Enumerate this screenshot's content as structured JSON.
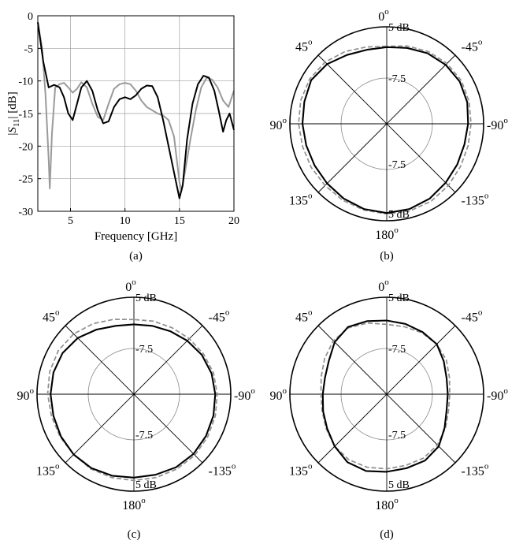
{
  "figure": {
    "colors": {
      "black": "#000000",
      "gray": "#9a9a9a",
      "dashed": "#8f8f8f",
      "circle": "#888888"
    }
  },
  "chart_data": [
    {
      "type": "line",
      "panel_label": "(a)",
      "xlabel": "Frequency [GHz]",
      "ylabel_parts": [
        "|",
        "S",
        "11",
        "| [dB]"
      ],
      "xlim": [
        2,
        20
      ],
      "ylim": [
        -30,
        0
      ],
      "xticks": [
        5,
        10,
        15,
        20
      ],
      "yticks": [
        0,
        -5,
        -10,
        -15,
        -20,
        -25,
        -30
      ],
      "grid": true,
      "series": [
        {
          "color": "#9a9a9a",
          "x": [
            2,
            2.4,
            2.7,
            3.0,
            3.1,
            3.3,
            3.6,
            4.0,
            4.4,
            4.8,
            5.2,
            5.6,
            6.0,
            6.5,
            7.0,
            7.5,
            8.0,
            8.5,
            9.0,
            9.5,
            10.0,
            10.5,
            11.0,
            11.5,
            12.0,
            12.5,
            13.0,
            13.5,
            14.0,
            14.5,
            15.0,
            15.2,
            15.5,
            16.0,
            16.5,
            17.0,
            17.5,
            18.0,
            18.5,
            19.0,
            19.5,
            20.0
          ],
          "y": [
            -1,
            -5,
            -12,
            -22,
            -26.5,
            -18,
            -11,
            -10.5,
            -10.3,
            -11.0,
            -11.8,
            -11.2,
            -10.2,
            -11.0,
            -13.5,
            -15.5,
            -16.0,
            -13.5,
            -11.2,
            -10.5,
            -10.3,
            -10.5,
            -11.5,
            -13.0,
            -14.0,
            -14.5,
            -15.0,
            -15.3,
            -16.0,
            -18.5,
            -25.5,
            -26.8,
            -24.0,
            -19.0,
            -14.5,
            -11.0,
            -9.5,
            -9.8,
            -11.0,
            -13.0,
            -14.0,
            -11.5
          ]
        },
        {
          "color": "#000000",
          "x": [
            2,
            2.5,
            3.0,
            3.5,
            4.0,
            4.4,
            4.8,
            5.2,
            5.6,
            6.0,
            6.5,
            7.0,
            7.5,
            8.0,
            8.5,
            9.0,
            9.5,
            10.0,
            10.5,
            11.0,
            11.5,
            12.0,
            12.5,
            13.0,
            13.5,
            14.0,
            14.5,
            15.0,
            15.3,
            15.7,
            16.2,
            16.7,
            17.2,
            17.7,
            18.2,
            18.6,
            19.0,
            19.3,
            19.6,
            20.0
          ],
          "y": [
            -1,
            -7,
            -11.0,
            -10.6,
            -11.0,
            -12.5,
            -15.0,
            -16.0,
            -13.5,
            -11.0,
            -10.0,
            -11.5,
            -14.5,
            -16.5,
            -16.2,
            -14.0,
            -12.8,
            -12.5,
            -12.8,
            -12.2,
            -11.2,
            -10.7,
            -10.8,
            -12.5,
            -16.0,
            -20.0,
            -24.0,
            -28.0,
            -26.0,
            -19.0,
            -13.5,
            -10.5,
            -9.2,
            -9.5,
            -11.5,
            -14.5,
            -17.8,
            -16.0,
            -15.0,
            -17.5
          ]
        }
      ]
    },
    {
      "type": "polar",
      "panel_label": "(b)",
      "angle_labels": {
        "top": "0",
        "top_right": "-45",
        "right": "-90",
        "bottom_right": "-135",
        "bottom": "180",
        "bottom_left": "135",
        "left": "90",
        "top_left": "45"
      },
      "degree_symbol": "o",
      "radial_labels": {
        "outer_top": "5 dB",
        "inner_top": "-7.5",
        "inner_bottom": "-7.5",
        "outer_bottom": "5 dB"
      },
      "series": [
        {
          "style": "solid",
          "color": "#000000",
          "r": [
            0.79,
            0.79,
            0.82,
            0.87,
            0.9,
            0.88,
            0.87,
            0.86,
            0.86,
            0.87,
            0.89,
            0.91,
            0.92,
            0.91,
            0.89,
            0.86,
            0.84,
            0.83,
            0.84,
            0.86,
            0.87,
            0.86,
            0.84,
            0.81
          ]
        },
        {
          "style": "dashed",
          "color": "#8f8f8f",
          "r": [
            0.8,
            0.82,
            0.86,
            0.9,
            0.92,
            0.92,
            0.91,
            0.9,
            0.9,
            0.9,
            0.91,
            0.92,
            0.93,
            0.93,
            0.92,
            0.9,
            0.88,
            0.87,
            0.87,
            0.88,
            0.89,
            0.88,
            0.86,
            0.83
          ]
        }
      ]
    },
    {
      "type": "polar",
      "panel_label": "(c)",
      "angle_labels": {
        "top": "0",
        "top_right": "-45",
        "right": "-90",
        "bottom_right": "-135",
        "bottom": "180",
        "bottom_left": "135",
        "left": "90",
        "top_left": "45"
      },
      "degree_symbol": "o",
      "radial_labels": {
        "outer_top": "5 dB",
        "inner_top": "-7.5",
        "inner_bottom": "-7.5",
        "outer_bottom": "5 dB"
      },
      "series": [
        {
          "style": "solid",
          "color": "#000000",
          "r": [
            0.72,
            0.73,
            0.77,
            0.82,
            0.85,
            0.86,
            0.86,
            0.86,
            0.87,
            0.88,
            0.88,
            0.87,
            0.86,
            0.86,
            0.87,
            0.87,
            0.86,
            0.85,
            0.84,
            0.83,
            0.81,
            0.78,
            0.75,
            0.73
          ]
        },
        {
          "style": "dashed",
          "color": "#8f8f8f",
          "r": [
            0.77,
            0.8,
            0.84,
            0.88,
            0.9,
            0.9,
            0.89,
            0.88,
            0.88,
            0.88,
            0.89,
            0.89,
            0.89,
            0.89,
            0.89,
            0.89,
            0.88,
            0.87,
            0.86,
            0.85,
            0.83,
            0.81,
            0.79,
            0.78
          ]
        }
      ]
    },
    {
      "type": "polar",
      "panel_label": "(d)",
      "angle_labels": {
        "top": "0",
        "top_right": "-45",
        "right": "-90",
        "bottom_right": "-135",
        "bottom": "180",
        "bottom_left": "135",
        "left": "90",
        "top_left": "45"
      },
      "degree_symbol": "o",
      "radial_labels": {
        "outer_top": "5 dB",
        "inner_top": "-7.5",
        "inner_bottom": "-7.5",
        "outer_bottom": "5 dB"
      },
      "series": [
        {
          "style": "solid",
          "color": "#000000",
          "r": [
            0.76,
            0.78,
            0.8,
            0.76,
            0.69,
            0.66,
            0.66,
            0.68,
            0.71,
            0.76,
            0.81,
            0.82,
            0.8,
            0.79,
            0.79,
            0.76,
            0.69,
            0.64,
            0.63,
            0.64,
            0.68,
            0.73,
            0.74,
            0.75
          ]
        },
        {
          "style": "dashed",
          "color": "#8f8f8f",
          "r": [
            0.72,
            0.76,
            0.79,
            0.78,
            0.74,
            0.7,
            0.68,
            0.69,
            0.72,
            0.76,
            0.78,
            0.78,
            0.77,
            0.76,
            0.76,
            0.74,
            0.7,
            0.66,
            0.65,
            0.67,
            0.71,
            0.73,
            0.73,
            0.72
          ]
        }
      ]
    }
  ]
}
